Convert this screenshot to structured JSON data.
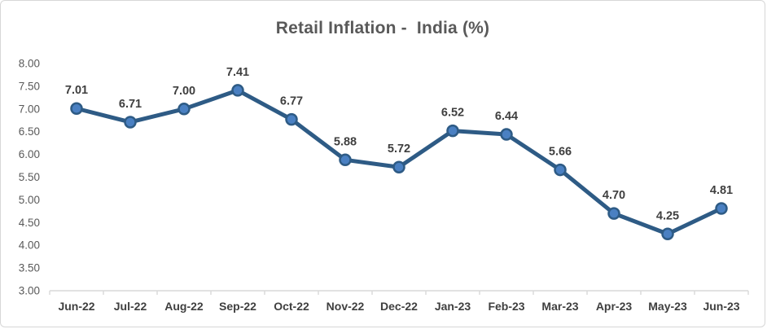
{
  "chart_data": {
    "type": "line",
    "title": "Retail Inflation -  India (%)",
    "categories": [
      "Jun-22",
      "Jul-22",
      "Aug-22",
      "Sep-22",
      "Oct-22",
      "Nov-22",
      "Dec-22",
      "Jan-23",
      "Feb-23",
      "Mar-23",
      "Apr-23",
      "May-23",
      "Jun-23"
    ],
    "values": [
      7.01,
      6.71,
      7.0,
      7.41,
      6.77,
      5.88,
      5.72,
      6.52,
      6.44,
      5.66,
      4.7,
      4.25,
      4.81
    ],
    "data_labels": [
      "7.01",
      "6.71",
      "7.00",
      "7.41",
      "6.77",
      "5.88",
      "5.72",
      "6.52",
      "6.44",
      "5.66",
      "4.70",
      "4.25",
      "4.81"
    ],
    "xlabel": "",
    "ylabel": "",
    "ylim": [
      3.0,
      8.0
    ],
    "ytick_step": 0.5,
    "ytick_labels": [
      "3.00",
      "3.50",
      "4.00",
      "4.50",
      "5.00",
      "5.50",
      "6.00",
      "6.50",
      "7.00",
      "7.50",
      "8.00"
    ],
    "grid": false,
    "legend": "none",
    "marker": "circle",
    "colors": {
      "line": "#2e5b85",
      "marker_fill": "#4a80c2",
      "marker_border": "#2e5b85",
      "title_text": "#595959",
      "ytick_text": "#595959",
      "xtick_text": "#3f3f3f",
      "data_label_text": "#3f3f3f",
      "axis_line": "#d9d9d9",
      "frame_border": "#d7d7d7",
      "background": "#ffffff"
    }
  }
}
